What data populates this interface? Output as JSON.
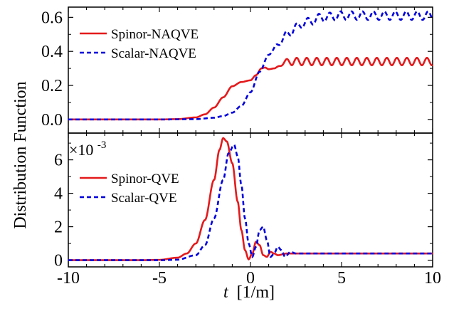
{
  "chart_data": [
    {
      "type": "line",
      "panel": "top",
      "x_range": [
        -10,
        10
      ],
      "ylim": [
        -0.08,
        0.66
      ],
      "yticks": [
        0.0,
        0.2,
        0.4,
        0.6
      ],
      "ytick_labels": [
        "0.0",
        "0.2",
        "0.4",
        "0.6"
      ],
      "legend_position": "top-left",
      "series": [
        {
          "name": "Spinor-NAQVE",
          "color": "#e41a1c",
          "style": "solid",
          "x": [
            -10,
            -5,
            -4,
            -3,
            -2.5,
            -2,
            -1.5,
            -1,
            -0.5,
            0,
            0.3,
            0.6,
            0.8,
            1.0,
            1.3,
            2,
            3,
            5,
            8,
            10
          ],
          "y": [
            0,
            0,
            0.002,
            0.012,
            0.03,
            0.07,
            0.13,
            0.195,
            0.22,
            0.23,
            0.26,
            0.3,
            0.305,
            0.295,
            0.3,
            0.34,
            0.34,
            0.34,
            0.34,
            0.34
          ],
          "oscillation": {
            "start": 1.3,
            "period": 0.55,
            "amplitude": 0.022
          }
        },
        {
          "name": "Scalar-NAQVE",
          "color": "#0000dd",
          "style": "dashed",
          "x": [
            -10,
            -5,
            -3,
            -2,
            -1.5,
            -1,
            -0.5,
            0,
            0.5,
            1.0,
            1.5,
            2,
            2.5,
            3,
            4,
            5,
            6,
            7,
            8,
            10
          ],
          "y": [
            0,
            0,
            0.002,
            0.01,
            0.02,
            0.04,
            0.08,
            0.16,
            0.28,
            0.38,
            0.44,
            0.5,
            0.54,
            0.57,
            0.6,
            0.61,
            0.61,
            0.61,
            0.61,
            0.61
          ],
          "oscillation": {
            "start": 1.2,
            "period": 0.6,
            "amplitude": 0.025
          }
        }
      ]
    },
    {
      "type": "line",
      "panel": "bottom",
      "x_range": [
        -10,
        10
      ],
      "ylim": [
        -0.0004,
        0.0076
      ],
      "yticks": [
        0,
        0.002,
        0.004,
        0.006
      ],
      "ytick_labels": [
        "0",
        "2",
        "4",
        "6"
      ],
      "multiplier_label": "×10",
      "multiplier_exponent": "-3",
      "legend_position": "center-left",
      "series": [
        {
          "name": "Spinor-QVE",
          "color": "#e41a1c",
          "style": "solid",
          "x": [
            -10,
            -6,
            -5,
            -4,
            -3.5,
            -3,
            -2.5,
            -2,
            -1.7,
            -1.5,
            -1.3,
            -1.0,
            -0.7,
            -0.5,
            -0.3,
            -0.1,
            0.1,
            0.3,
            0.5,
            0.7,
            0.9,
            1.1,
            1.3,
            1.5,
            2,
            3,
            5,
            10
          ],
          "y": [
            0,
            0,
            2e-05,
            0.00015,
            0.0004,
            0.001,
            0.0024,
            0.0048,
            0.0066,
            0.0073,
            0.0071,
            0.0058,
            0.0035,
            0.0018,
            0.0006,
            5e-05,
            0.0004,
            0.0011,
            0.0009,
            0.0003,
            0.0002,
            0.0005,
            0.0004,
            0.0003,
            0.0004,
            0.0004,
            0.0004,
            0.0004
          ]
        },
        {
          "name": "Scalar-QVE",
          "color": "#0000dd",
          "style": "dashed",
          "x": [
            -10,
            -5,
            -4,
            -3,
            -2.5,
            -2,
            -1.5,
            -1.2,
            -0.9,
            -0.7,
            -0.5,
            -0.3,
            -0.1,
            0.1,
            0.3,
            0.5,
            0.7,
            0.9,
            1.1,
            1.3,
            1.5,
            1.7,
            1.9,
            2.2,
            2.5,
            3,
            4,
            10
          ],
          "y": [
            0,
            0,
            3e-05,
            0.0003,
            0.0009,
            0.0025,
            0.0048,
            0.0064,
            0.0069,
            0.0062,
            0.0045,
            0.0025,
            0.001,
            0.0002,
            0.0008,
            0.0018,
            0.002,
            0.0012,
            0.0002,
            0.0004,
            0.0008,
            0.0006,
            0.0002,
            0.0005,
            0.0004,
            0.0004,
            0.0004,
            0.0004
          ]
        }
      ]
    }
  ],
  "shared": {
    "xticks": [
      -10,
      -5,
      0,
      5,
      10
    ],
    "xtick_labels": [
      "-10",
      "-5",
      "0",
      "5",
      "10"
    ],
    "ylabel": "Distribution Function",
    "xlabel_var": "t",
    "xlabel_unit": "[1/m]"
  }
}
